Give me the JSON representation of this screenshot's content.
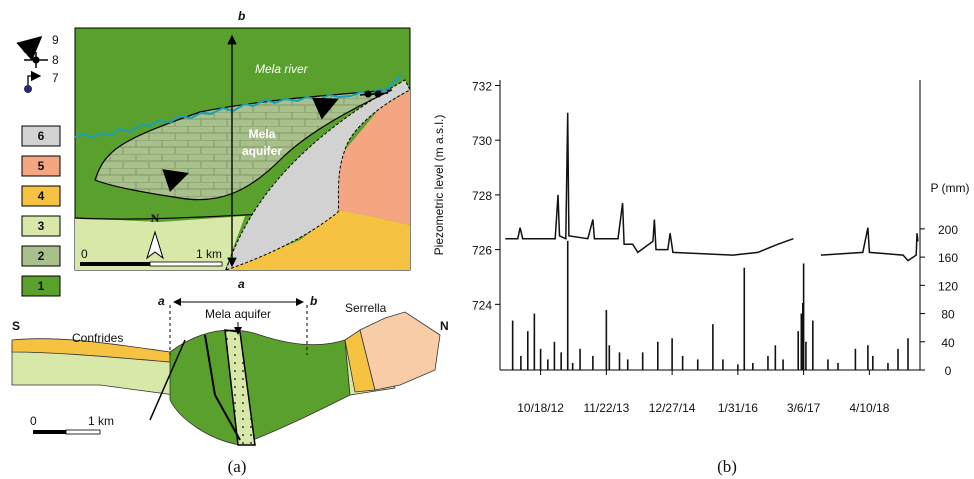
{
  "panel_a": {
    "legend": [
      "9",
      "8",
      "7",
      "6",
      "5",
      "4",
      "3",
      "2",
      "1"
    ],
    "map": {
      "river": "Mela river",
      "aquifer": [
        "Mela",
        "aquifer"
      ],
      "north": "N",
      "scale_start": "0",
      "scale_end": "1 km",
      "section_start": "a",
      "section_end": "b"
    },
    "section": {
      "south": "S",
      "north": "N",
      "left_place": "Confrides",
      "aquifer": "Mela aquifer",
      "right_place": "Serrella",
      "start": "a",
      "end": "b",
      "scale_start": "0",
      "scale_end": "1 km"
    },
    "caption": "(a)"
  },
  "chart_data": {
    "type": "line",
    "y_label": "Piezometric level (m a.s.l.)",
    "y2_label": "P (mm)",
    "xlim": [
      "2/14/12",
      "2/12/19"
    ],
    "xticks": [
      "10/18/12",
      "11/22/13",
      "12/27/14",
      "1/31/16",
      "3/6/17",
      "4/10/18"
    ],
    "ylim": [
      721.6,
      732.2
    ],
    "yticks": [
      724,
      726,
      728,
      730,
      732
    ],
    "y2lim": [
      0,
      411
    ],
    "y2ticks": [
      0,
      40,
      80,
      120,
      160,
      200
    ],
    "series": [
      {
        "type": "line",
        "color": "#111111",
        "x": [
          "3/17/12",
          "6/1/12",
          "6/15/12",
          "7/1/12",
          "1/15/13",
          "2/1/13",
          "2/10/13",
          "3/20/13",
          "4/1/13",
          "4/8/13",
          "8/1/13",
          "9/1/13",
          "9/10/13",
          "2/1/14",
          "3/1/14",
          "3/10/14",
          "5/1/14",
          "6/1/14",
          "9/1/14",
          "9/10/14",
          "9/20/14",
          "12/1/14",
          "12/15/14",
          "1/1/15",
          "1/1/16",
          "6/1/16",
          "10/1/16",
          "1/3/17",
          "3/6/17",
          "6/19/17",
          "3/1/18",
          "4/1/18",
          "4/10/18",
          "11/1/18",
          "12/1/18",
          "1/20/19",
          "1/25/19",
          "1/30/19"
        ],
        "values": [
          726.4,
          726.4,
          726.8,
          726.4,
          726.4,
          728.0,
          726.5,
          726.4,
          731.0,
          726.5,
          726.4,
          727.1,
          726.4,
          726.4,
          727.7,
          726.2,
          726.2,
          725.9,
          726.3,
          727.1,
          726.0,
          726.0,
          726.6,
          725.9,
          725.8,
          725.9,
          726.2,
          726.4,
          null,
          725.8,
          725.9,
          726.8,
          725.9,
          725.8,
          725.6,
          725.8,
          726.6,
          726.3
        ]
      },
      {
        "type": "bar",
        "axis": "y2",
        "color": "#111111",
        "x": [
          "5/1/12",
          "6/20/12",
          "8/1/12",
          "9/10/12",
          "10/18/12",
          "12/1/12",
          "1/10/13",
          "2/20/13",
          "4/1/13",
          "5/1/13",
          "6/15/13",
          "9/1/13",
          "11/22/13",
          "12/10/13",
          "2/10/14",
          "4/1/14",
          "7/1/14",
          "10/1/14",
          "12/27/14",
          "3/1/15",
          "6/1/15",
          "9/1/15",
          "11/1/15",
          "1/31/16",
          "3/10/16",
          "5/1/16",
          "8/1/16",
          "9/15/16",
          "11/1/16",
          "2/1/17",
          "2/20/17",
          "3/1/17",
          "3/6/17",
          "3/20/17",
          "5/1/17",
          "8/1/17",
          "10/1/17",
          "1/15/18",
          "4/1/18",
          "5/1/18",
          "8/1/18",
          "10/1/18",
          "12/1/18"
        ],
        "values": [
          70,
          20,
          55,
          80,
          30,
          15,
          40,
          25,
          183,
          10,
          30,
          20,
          85,
          35,
          25,
          15,
          25,
          40,
          45,
          20,
          15,
          65,
          15,
          8,
          145,
          10,
          20,
          35,
          15,
          55,
          80,
          95,
          151,
          40,
          70,
          15,
          10,
          30,
          35,
          20,
          10,
          30,
          45
        ]
      }
    ]
  },
  "caption_b": "(b)"
}
